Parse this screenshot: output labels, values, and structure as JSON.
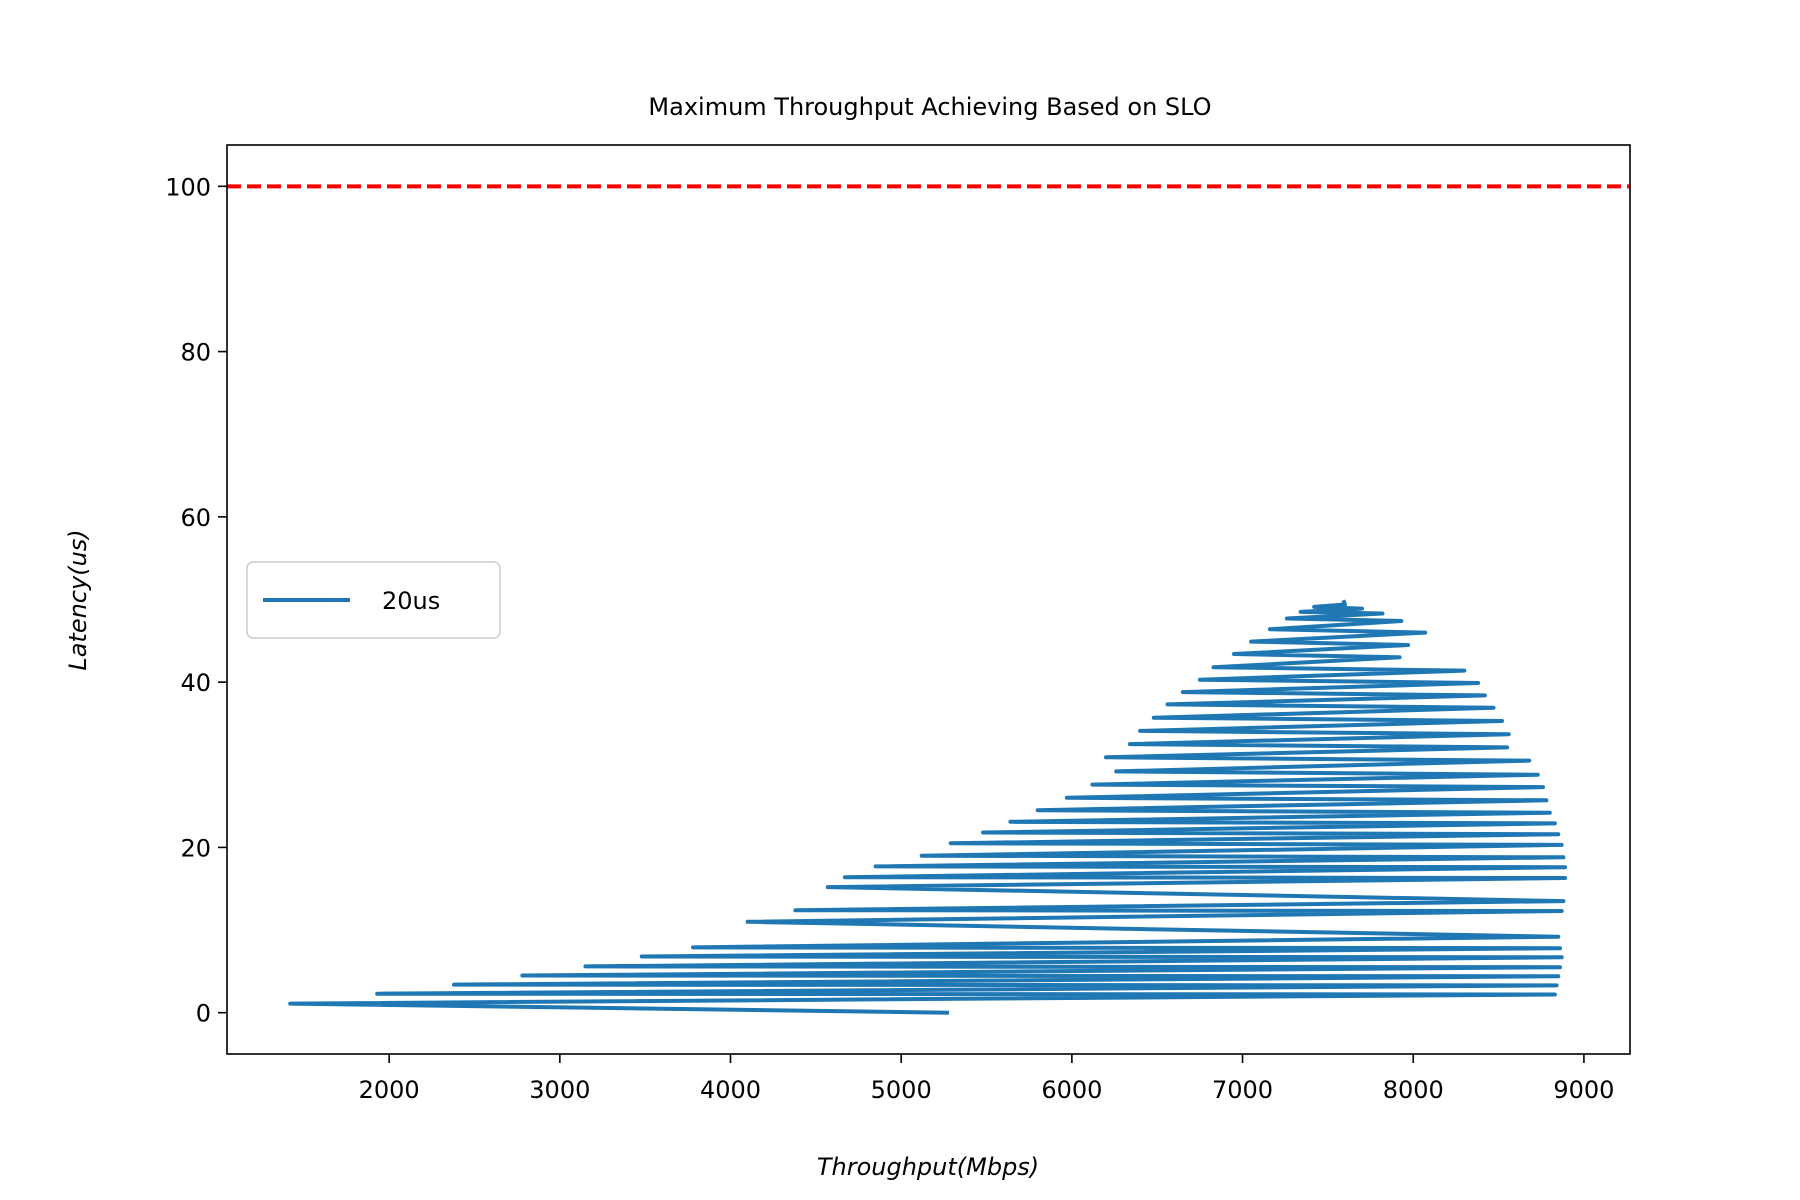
{
  "chart_data": {
    "type": "line",
    "title": "Maximum Throughput Achieving Based on SLO",
    "xlabel": "Throughput(Mbps)",
    "ylabel": "Latency(us)",
    "xlim": [
      1050,
      9270
    ],
    "ylim": [
      -5,
      105
    ],
    "xticks": [
      2000,
      3000,
      4000,
      5000,
      6000,
      7000,
      8000,
      9000
    ],
    "yticks": [
      0,
      20,
      40,
      60,
      80,
      100
    ],
    "grid": false,
    "legend": {
      "placement": "center-left",
      "entries": [
        "20us"
      ]
    },
    "colors": {
      "series": "#1f77b4",
      "slo_line": "#ff0000"
    },
    "reference_line": {
      "y": 100,
      "style": "dashed",
      "color": "#ff0000"
    },
    "series": [
      {
        "name": "20us",
        "x": [
          5280,
          1420,
          8830,
          1930,
          8840,
          2380,
          8850,
          2780,
          8860,
          3150,
          8870,
          3480,
          8860,
          3780,
          8850,
          4100,
          8870,
          4380,
          8880,
          4570,
          8890,
          4670,
          8890,
          4850,
          8880,
          5120,
          8870,
          5290,
          8850,
          5480,
          8830,
          5640,
          8800,
          5800,
          8780,
          5970,
          8760,
          6120,
          8730,
          6260,
          8680,
          6200,
          8550,
          6340,
          8560,
          6400,
          8520,
          6480,
          8470,
          6560,
          8420,
          6650,
          8380,
          6750,
          8300,
          6830,
          7920,
          6950,
          7970,
          7050,
          8070,
          7160,
          7930,
          7260,
          7820,
          7340,
          7700,
          7420,
          7600,
          7590
        ],
        "y": [
          0,
          1.1,
          2.2,
          2.3,
          3.3,
          3.4,
          4.4,
          4.5,
          5.5,
          5.6,
          6.7,
          6.8,
          7.8,
          7.9,
          9.2,
          11,
          12.3,
          12.4,
          13.5,
          15.2,
          16.3,
          16.4,
          17.6,
          17.7,
          18.8,
          19,
          20.3,
          20.5,
          21.6,
          21.8,
          22.9,
          23.1,
          24.2,
          24.5,
          25.7,
          26,
          27.3,
          27.6,
          28.8,
          29.2,
          30.5,
          30.9,
          32.1,
          32.5,
          33.7,
          34.1,
          35.3,
          35.7,
          36.9,
          37.3,
          38.4,
          38.8,
          39.9,
          40.3,
          41.4,
          41.8,
          43,
          43.4,
          44.5,
          44.9,
          46,
          46.4,
          47.4,
          47.7,
          48.3,
          48.5,
          48.9,
          49.1,
          49.4,
          49.9
        ]
      }
    ]
  }
}
